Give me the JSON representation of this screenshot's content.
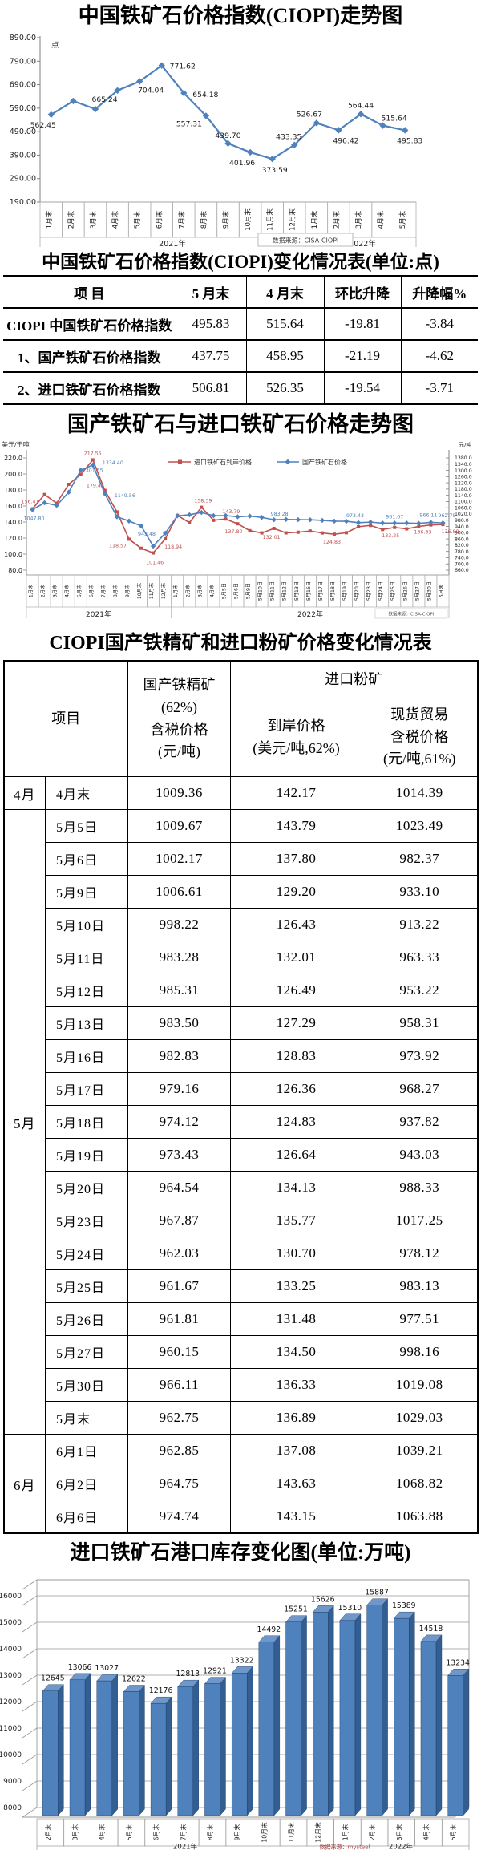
{
  "chart_data": [
    {
      "type": "line",
      "title": "中国铁矿石价格指数(CIOPI)走势图",
      "ylabel": "点",
      "ylim": [
        190,
        890
      ],
      "y_ticks": [
        "890.00",
        "790.00",
        "690.00",
        "590.00",
        "490.00",
        "390.00",
        "290.00",
        "190.00"
      ],
      "categories": [
        "1月末",
        "2月末",
        "3月末",
        "4月末",
        "5月末",
        "6月末",
        "7月末",
        "8月末",
        "9月末",
        "10月末",
        "11月末",
        "12月末",
        "1月末",
        "2月末",
        "3月末",
        "4月末",
        "5月末"
      ],
      "values": [
        562.45,
        620.5,
        586.0,
        665.24,
        704.04,
        771.62,
        654.18,
        557.31,
        439.7,
        401.96,
        373.59,
        433.35,
        526.67,
        496.42,
        564.44,
        515.64,
        495.83
      ],
      "point_labels": {
        "0": "562.45",
        "3": "665.24",
        "4": "704.04",
        "5": "771.62",
        "6": "654.18",
        "7": "557.31",
        "8": "439.70",
        "9": "401.96",
        "10": "373.59",
        "11": "433.35",
        "12": "526.67",
        "13": "496.42",
        "14": "564.44",
        "15": "515.64",
        "16": "495.83"
      },
      "groups": [
        {
          "label": "2021年",
          "span": 12
        },
        {
          "label": "2022年",
          "span": 5
        }
      ],
      "line_color": "#4f81bd",
      "source": "数据来源：CISA-CIOPI",
      "legend_position": "none",
      "grid": false
    },
    {
      "type": "table",
      "title": "中国铁矿石价格指数(CIOPI)变化情况表(单位:点)",
      "headers": [
        "项  目",
        "5 月末",
        "4 月末",
        "环比升降",
        "升降幅%"
      ],
      "rows": [
        [
          "CIOPI 中国铁矿石价格指数",
          "495.83",
          "515.64",
          "-19.81",
          "-3.84"
        ],
        [
          "1、国产铁矿石价格指数",
          "437.75",
          "458.95",
          "-21.19",
          "-4.62"
        ],
        [
          "2、进口铁矿石价格指数",
          "506.81",
          "526.35",
          "-19.54",
          "-3.71"
        ]
      ]
    },
    {
      "type": "line",
      "title": "国产铁矿石与进口铁矿石价格走势图",
      "left_axis_label": "美元/干吨",
      "right_axis_label": "元/吨",
      "left_ylim": [
        80,
        220
      ],
      "right_ylim": [
        660,
        1380
      ],
      "left_ticks": [
        "220.0",
        "200.0",
        "180.0",
        "160.0",
        "140.0",
        "120.0",
        "100.0",
        "80.0"
      ],
      "right_ticks": [
        "1380.0",
        "1340.0",
        "1300.0",
        "1260.0",
        "1220.0",
        "1180.0",
        "1140.0",
        "1100.0",
        "1060.0",
        "1020.0",
        "980.0",
        "940.0",
        "900.0",
        "860.0",
        "820.0",
        "780.0",
        "740.0",
        "700.0",
        "660.0"
      ],
      "categories": [
        "1月末",
        "2月末",
        "3月末",
        "4月末",
        "5月末",
        "6月末",
        "7月末",
        "8月末",
        "9月末",
        "10月末",
        "11月末",
        "12月末",
        "1月末",
        "2月末",
        "3月末",
        "4月末",
        "5月5日",
        "5月6日",
        "5月9日",
        "5月10日",
        "5月11日",
        "5月12日",
        "5月13日",
        "5月16日",
        "5月17日",
        "5月18日",
        "5月19日",
        "5月20日",
        "5月23日",
        "5月24日",
        "5月25日",
        "5月26日",
        "5月27日",
        "5月30日",
        "5月末"
      ],
      "groups": [
        {
          "label": "2021年",
          "span": 12
        },
        {
          "label": "2022年",
          "span": 23
        }
      ],
      "series": [
        {
          "name": "进口铁矿石到岸价格",
          "axis": "left",
          "color": "#c0504d",
          "marker": "square",
          "values": [
            156.41,
            174.3,
            163.5,
            187.0,
            199.5,
            217.55,
            179.42,
            152.6,
            118.57,
            107.3,
            101.46,
            118.94,
            148.3,
            139.2,
            158.39,
            142.17,
            143.79,
            137.8,
            129.2,
            126.43,
            132.01,
            126.49,
            127.29,
            128.83,
            126.36,
            124.83,
            126.64,
            134.13,
            135.77,
            130.7,
            133.25,
            131.48,
            134.5,
            136.33,
            136.89
          ],
          "labels": {
            "0": "156.41",
            "5": "217.55",
            "6": "179.42",
            "8": "118.57",
            "10": "101.46",
            "11": "118.94",
            "14": "158.39",
            "16": "143.79",
            "17": "137.80",
            "20": "132.01",
            "25": "124.83",
            "30": "133.25",
            "33": "136.33",
            "34": "136.89"
          }
        },
        {
          "name": "国产铁矿石价格",
          "axis": "right",
          "color": "#4f81bd",
          "marker": "diamond",
          "values": [
            1047.8,
            1092,
            1075,
            1160,
            1301.55,
            1334.4,
            1149.56,
            1002,
            975,
            943.48,
            814,
            897,
            1008,
            1015,
            1030,
            1009.36,
            1009.67,
            1002.17,
            1006.61,
            998.22,
            983.28,
            985.31,
            983.5,
            982.83,
            979.16,
            974.12,
            973.43,
            964.54,
            967.87,
            962.03,
            961.67,
            961.81,
            960.15,
            966.11,
            962.75
          ],
          "labels": {
            "0": "1047.80",
            "4": "1301.55",
            "5": "1334.40",
            "6": "1149.56",
            "9": "943.48",
            "20": "983.28",
            "26": "973.43",
            "30": "961.67",
            "33": "966.11",
            "34": "962.75"
          }
        }
      ],
      "source": "数据来源：CISA-CIOPI",
      "legend_position": "top",
      "grid": false
    },
    {
      "type": "table",
      "title": "CIOPI国产铁精矿和进口粉矿价格变化情况表",
      "header": {
        "project": "项目",
        "domestic_lines": [
          "国产铁精矿",
          "(62%)",
          "含税价格",
          "(元/吨)"
        ],
        "import_group": "进口粉矿",
        "cif_lines": [
          "到岸价格",
          "(美元/吨,62%)"
        ],
        "spot_lines": [
          "现货贸易",
          "含税价格",
          "(元/吨,61%)"
        ]
      },
      "groups": [
        {
          "month": "4月",
          "rows": [
            [
              "4月末",
              "1009.36",
              "142.17",
              "1014.39"
            ]
          ]
        },
        {
          "month": "5月",
          "rows": [
            [
              "5月5日",
              "1009.67",
              "143.79",
              "1023.49"
            ],
            [
              "5月6日",
              "1002.17",
              "137.80",
              "982.37"
            ],
            [
              "5月9日",
              "1006.61",
              "129.20",
              "933.10"
            ],
            [
              "5月10日",
              "998.22",
              "126.43",
              "913.22"
            ],
            [
              "5月11日",
              "983.28",
              "132.01",
              "963.33"
            ],
            [
              "5月12日",
              "985.31",
              "126.49",
              "953.22"
            ],
            [
              "5月13日",
              "983.50",
              "127.29",
              "958.31"
            ],
            [
              "5月16日",
              "982.83",
              "128.83",
              "973.92"
            ],
            [
              "5月17日",
              "979.16",
              "126.36",
              "968.27"
            ],
            [
              "5月18日",
              "974.12",
              "124.83",
              "937.82"
            ],
            [
              "5月19日",
              "973.43",
              "126.64",
              "943.03"
            ],
            [
              "5月20日",
              "964.54",
              "134.13",
              "988.33"
            ],
            [
              "5月23日",
              "967.87",
              "135.77",
              "1017.25"
            ],
            [
              "5月24日",
              "962.03",
              "130.70",
              "978.12"
            ],
            [
              "5月25日",
              "961.67",
              "133.25",
              "983.13"
            ],
            [
              "5月26日",
              "961.81",
              "131.48",
              "977.51"
            ],
            [
              "5月27日",
              "960.15",
              "134.50",
              "998.16"
            ],
            [
              "5月30日",
              "966.11",
              "136.33",
              "1019.08"
            ],
            [
              "5月末",
              "962.75",
              "136.89",
              "1029.03"
            ]
          ]
        },
        {
          "month": "6月",
          "rows": [
            [
              "6月1日",
              "962.85",
              "137.08",
              "1039.21"
            ],
            [
              "6月2日",
              "964.75",
              "143.63",
              "1068.82"
            ],
            [
              "6月6日",
              "974.74",
              "143.15",
              "1063.88"
            ]
          ]
        }
      ]
    },
    {
      "type": "bar",
      "title": "进口铁矿石港口库存变化图(单位:万吨)",
      "ylim": [
        8000,
        16400
      ],
      "y_ticks": [
        "16000",
        "15000",
        "14000",
        "13000",
        "12000",
        "11000",
        "10000",
        "9000",
        "8000"
      ],
      "categories": [
        "2月末",
        "3月末",
        "4月末",
        "5月末",
        "6月末",
        "7月末",
        "8月末",
        "9月末",
        "10月末",
        "11月末",
        "12月末",
        "1月末",
        "2月末",
        "3月末",
        "4月末",
        "5月末"
      ],
      "values": [
        12645,
        13066,
        13027,
        12622,
        12176,
        12813,
        12921,
        13322,
        14492,
        15251,
        15626,
        15310,
        15887,
        15389,
        14518,
        13234
      ],
      "groups": [
        {
          "label": "2021年",
          "span": 11
        },
        {
          "label": "2022年",
          "span": 5
        }
      ],
      "bar_front_color": "#4f81bd",
      "bar_top_color": "#6f97c9",
      "bar_side_color": "#335e92",
      "source": "数据来源：mysteel",
      "grid": true
    }
  ]
}
